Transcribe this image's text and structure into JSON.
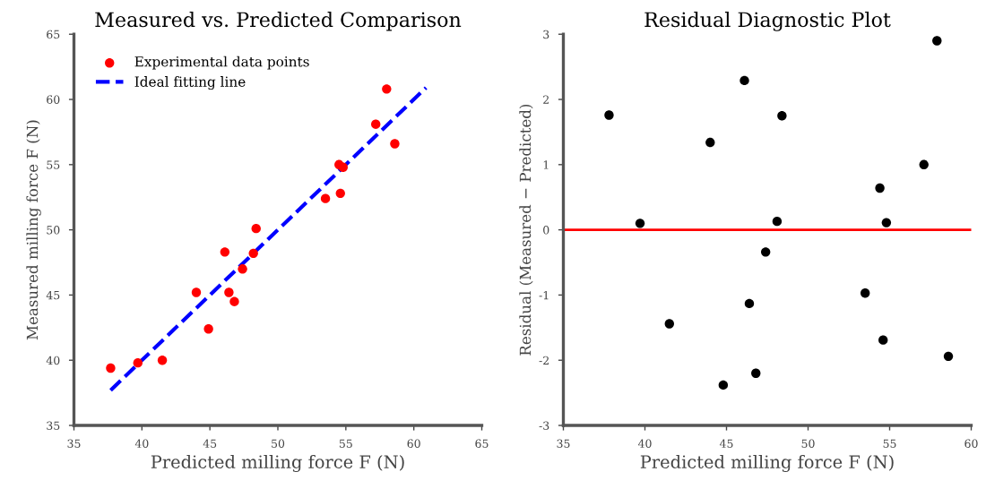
{
  "chart_data": [
    {
      "type": "scatter",
      "title": "Measured vs. Predicted Comparison",
      "xlabel": "Predicted milling force F (N)",
      "ylabel": "Measured milling force F (N)",
      "xlim": [
        35,
        65
      ],
      "ylim": [
        35,
        65
      ],
      "xticks": [
        35,
        40,
        45,
        50,
        55,
        60,
        65
      ],
      "yticks": [
        35,
        40,
        45,
        50,
        55,
        60,
        65
      ],
      "grid": false,
      "legend": "top left",
      "series": [
        {
          "name": "Experimental data points",
          "color": "#ff0000",
          "marker": "circle",
          "x": [
            37.7,
            39.7,
            41.5,
            44.0,
            44.9,
            46.1,
            46.4,
            46.8,
            47.4,
            48.2,
            48.4,
            53.5,
            54.5,
            54.6,
            54.8,
            57.2,
            58.0,
            58.6
          ],
          "values": [
            39.4,
            39.8,
            40.0,
            45.2,
            42.4,
            48.3,
            45.2,
            44.5,
            47.0,
            48.2,
            50.1,
            52.4,
            55.0,
            52.8,
            54.8,
            58.1,
            60.8,
            56.6
          ]
        },
        {
          "name": "Ideal fitting line",
          "type": "line",
          "color": "#0000ff",
          "line_style": "dashed",
          "marker": "none",
          "x": [
            37.7,
            60.9
          ],
          "values": [
            37.7,
            60.9
          ]
        }
      ]
    },
    {
      "type": "scatter",
      "title": "Residual Diagnostic Plot",
      "xlabel": "Predicted milling force F (N)",
      "ylabel": "Residual (Measured − Predicted)",
      "xlim": [
        35,
        60
      ],
      "ylim": [
        -3,
        3
      ],
      "xticks": [
        35,
        40,
        45,
        50,
        55,
        60
      ],
      "yticks": [
        -3,
        -2,
        -1,
        0,
        1,
        2,
        3
      ],
      "grid": false,
      "legend": false,
      "ref_lines": [
        {
          "axis": "y",
          "value": 0,
          "color": "#ff0000",
          "line_style": "solid"
        }
      ],
      "series": [
        {
          "color": "#000000",
          "marker": "circle",
          "x": [
            37.8,
            39.7,
            41.5,
            44.0,
            44.8,
            46.1,
            46.4,
            46.8,
            47.4,
            48.1,
            48.4,
            53.5,
            54.4,
            54.6,
            54.8,
            57.1,
            57.9,
            58.6
          ],
          "values": [
            1.76,
            0.1,
            -1.44,
            1.34,
            -2.38,
            2.29,
            -1.13,
            -2.2,
            -0.34,
            0.13,
            1.75,
            -0.97,
            0.64,
            -1.69,
            0.11,
            1.0,
            2.9,
            -1.94
          ]
        }
      ]
    }
  ]
}
